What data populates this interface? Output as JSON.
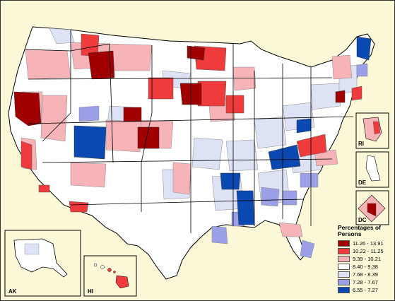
{
  "legend": {
    "title": "Percentages of Persons",
    "classes": [
      {
        "label": "11.26 - 13.91",
        "color": "#a00000"
      },
      {
        "label": "10.22 - 11.25",
        "color": "#ef3b3b"
      },
      {
        "label": "9.39 - 10.21",
        "color": "#f6b3b8"
      },
      {
        "label": "8.40 - 9.38",
        "color": "#ffffff"
      },
      {
        "label": "7.68 - 8.39",
        "color": "#dde2f4"
      },
      {
        "label": "7.28 - 7.67",
        "color": "#9a9fe6"
      },
      {
        "label": "6.55 - 7.27",
        "color": "#0b49b2"
      }
    ]
  },
  "insets": {
    "ak": "AK",
    "hi": "HI",
    "ri": "RI",
    "de": "DE",
    "dc": "DC"
  },
  "colors": {
    "background": "#fbf8d8",
    "state_border": "#000000",
    "region_border": "#888888"
  }
}
